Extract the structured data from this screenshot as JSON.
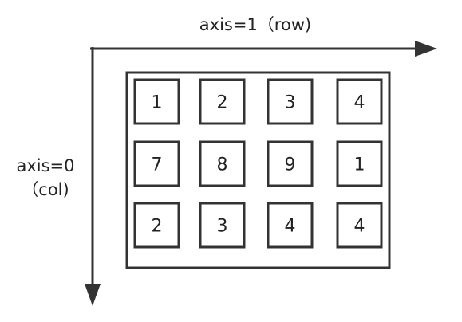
{
  "axis_row": {
    "label": "axis=1（row)"
  },
  "axis_col": {
    "line1": "axis=0",
    "line2": "（col)"
  },
  "matrix": {
    "rows": [
      [
        "1",
        "2",
        "3",
        "4"
      ],
      [
        "7",
        "8",
        "9",
        "1"
      ],
      [
        "2",
        "3",
        "4",
        "4"
      ]
    ]
  },
  "colors": {
    "stroke": "#333333",
    "text": "#222222"
  }
}
